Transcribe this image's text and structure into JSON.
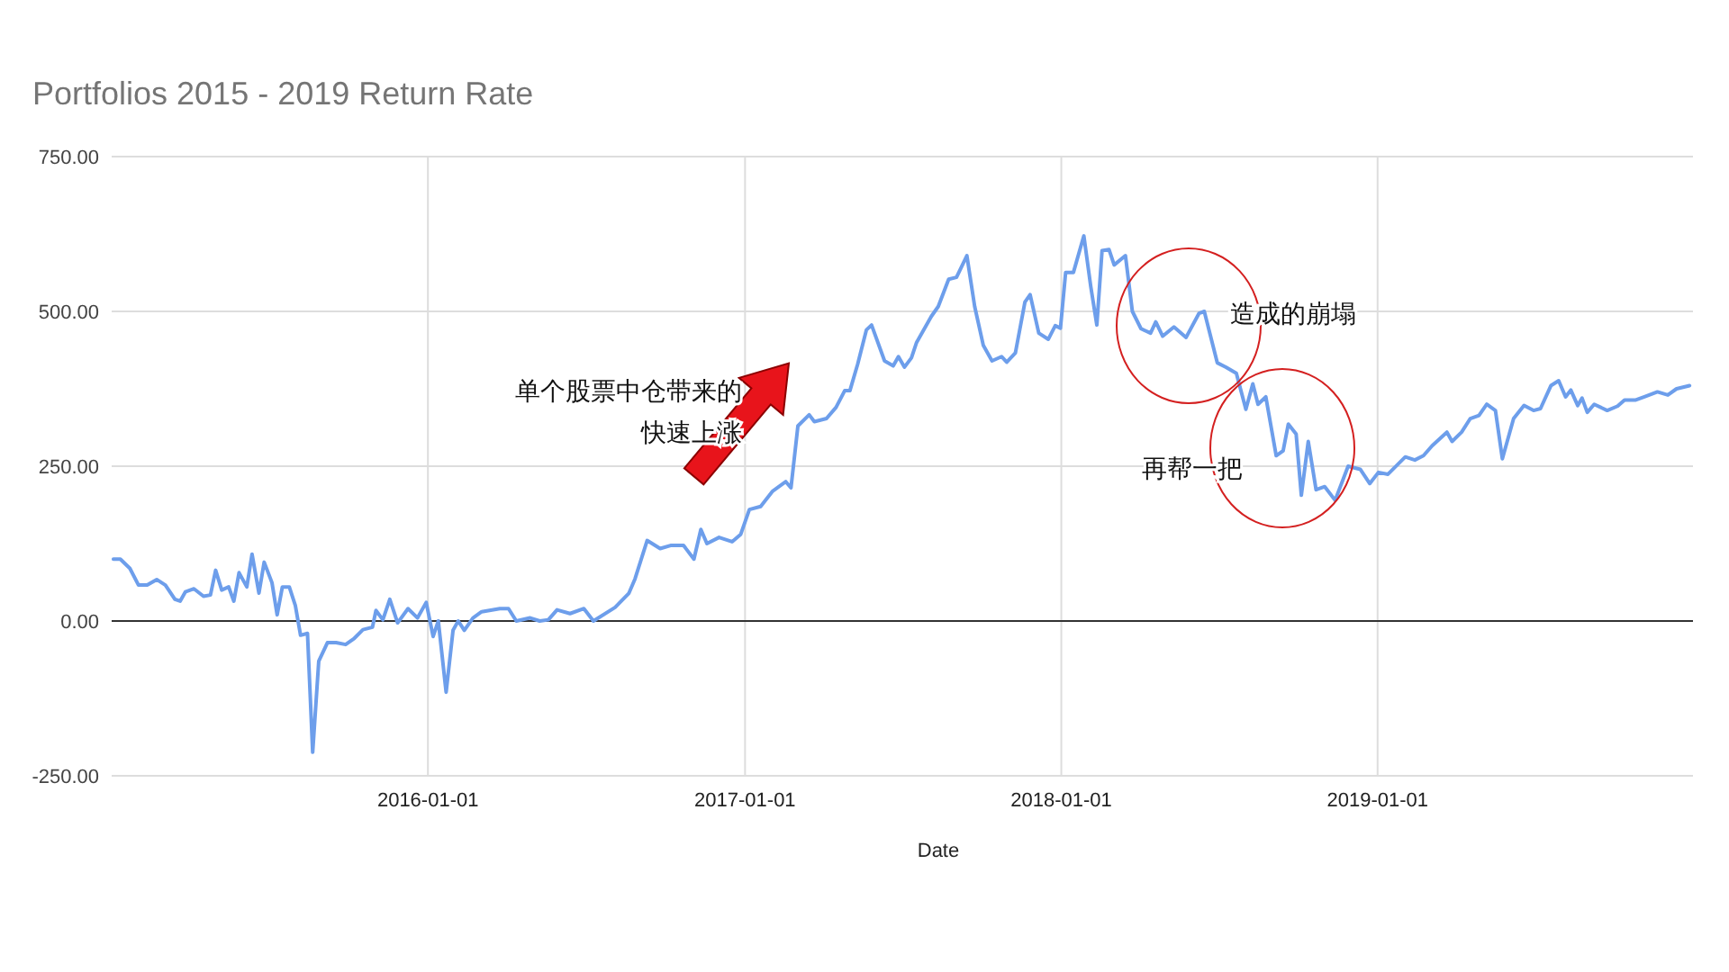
{
  "chart_data": {
    "type": "line",
    "title": "Portfolios 2015 - 2019 Return Rate",
    "xlabel": "Date",
    "xlim": [
      "2015-01-01",
      "2019-12-31"
    ],
    "xticks": [
      "2016-01-01",
      "2017-01-01",
      "2018-01-01",
      "2019-01-01"
    ],
    "ylim": [
      -250,
      750
    ],
    "yticks": [
      {
        "value": -250,
        "label": "-250.00"
      },
      {
        "value": 0,
        "label": "0.00"
      },
      {
        "value": 250,
        "label": "250.00"
      },
      {
        "value": 500,
        "label": "500.00"
      },
      {
        "value": 750,
        "label": "750.00"
      }
    ],
    "grid": true,
    "line_style": "solid",
    "marker": "none",
    "ref_lines": [
      {
        "axis": "y",
        "value": 0,
        "color": "#333333"
      }
    ],
    "annotations": [
      "单个股票中仓带来的",
      "快速上涨",
      "造成的崩塌",
      "再帮一把"
    ],
    "x": [
      "2015-01-03",
      "2015-01-11",
      "2015-01-22",
      "2015-02-01",
      "2015-02-11",
      "2015-02-22",
      "2015-03-04",
      "2015-03-15",
      "2015-03-21",
      "2015-03-27",
      "2015-04-06",
      "2015-04-17",
      "2015-04-25",
      "2015-05-01",
      "2015-05-08",
      "2015-05-16",
      "2015-05-22",
      "2015-05-28",
      "2015-06-06",
      "2015-06-12",
      "2015-06-20",
      "2015-06-26",
      "2015-07-05",
      "2015-07-11",
      "2015-07-17",
      "2015-07-25",
      "2015-08-01",
      "2015-08-07",
      "2015-08-15",
      "2015-08-21",
      "2015-08-28",
      "2015-09-07",
      "2015-09-17",
      "2015-09-28",
      "2015-10-08",
      "2015-10-18",
      "2015-10-29",
      "2015-11-02",
      "2015-11-10",
      "2015-11-18",
      "2015-11-27",
      "2015-12-09",
      "2015-12-20",
      "2015-12-30",
      "2016-01-07",
      "2016-01-13",
      "2016-01-22",
      "2016-01-30",
      "2016-02-05",
      "2016-02-12",
      "2016-02-22",
      "2016-03-03",
      "2016-03-24",
      "2016-04-03",
      "2016-04-12",
      "2016-04-28",
      "2016-05-09",
      "2016-05-19",
      "2016-05-29",
      "2016-06-13",
      "2016-06-29",
      "2016-07-10",
      "2016-08-04",
      "2016-08-20",
      "2016-08-27",
      "2016-09-10",
      "2016-09-25",
      "2016-10-07",
      "2016-10-22",
      "2016-11-03",
      "2016-11-11",
      "2016-11-18",
      "2016-12-02",
      "2016-12-17",
      "2016-12-27",
      "2017-01-06",
      "2017-01-19",
      "2017-02-02",
      "2017-02-17",
      "2017-02-23",
      "2017-03-03",
      "2017-03-16",
      "2017-03-22",
      "2017-04-05",
      "2017-04-16",
      "2017-04-26",
      "2017-05-02",
      "2017-05-11",
      "2017-05-21",
      "2017-05-27",
      "2017-06-11",
      "2017-06-21",
      "2017-06-27",
      "2017-07-04",
      "2017-07-12",
      "2017-07-18",
      "2017-08-04",
      "2017-08-12",
      "2017-08-24",
      "2017-09-02",
      "2017-09-14",
      "2017-09-23",
      "2017-10-03",
      "2017-10-13",
      "2017-10-24",
      "2017-10-30",
      "2017-11-09",
      "2017-11-20",
      "2017-11-26",
      "2017-12-06",
      "2017-12-17",
      "2017-12-25",
      "2017-12-31",
      "2018-01-06",
      "2018-01-15",
      "2018-01-27",
      "2018-02-04",
      "2018-02-11",
      "2018-02-17",
      "2018-02-25",
      "2018-03-03",
      "2018-03-16",
      "2018-03-24",
      "2018-04-03",
      "2018-04-14",
      "2018-04-20",
      "2018-04-28",
      "2018-05-11",
      "2018-05-25",
      "2018-06-09",
      "2018-06-15",
      "2018-06-30",
      "2018-07-10",
      "2018-07-22",
      "2018-08-02",
      "2018-08-10",
      "2018-08-16",
      "2018-08-25",
      "2018-09-06",
      "2018-09-14",
      "2018-09-20",
      "2018-09-29",
      "2018-10-05",
      "2018-10-13",
      "2018-10-22",
      "2018-11-01",
      "2018-11-13",
      "2018-11-28",
      "2018-12-12",
      "2018-12-23",
      "2019-01-02",
      "2019-01-13",
      "2019-02-02",
      "2019-02-13",
      "2019-02-23",
      "2019-03-05",
      "2019-03-22",
      "2019-03-28",
      "2019-04-08",
      "2019-04-18",
      "2019-04-28",
      "2019-05-07",
      "2019-05-17",
      "2019-05-25",
      "2019-06-07",
      "2019-06-19",
      "2019-06-30",
      "2019-07-08",
      "2019-07-20",
      "2019-07-29",
      "2019-08-06",
      "2019-08-12",
      "2019-08-20",
      "2019-08-25",
      "2019-08-31",
      "2019-09-08",
      "2019-09-23",
      "2019-10-05",
      "2019-10-13",
      "2019-10-26",
      "2019-11-05",
      "2019-11-20",
      "2019-12-02",
      "2019-12-12",
      "2019-12-27"
    ],
    "series": [
      {
        "color": "#6d9eeb",
        "values": [
          100,
          100,
          85,
          58,
          58,
          67,
          58,
          35,
          32,
          47,
          52,
          40,
          42,
          82,
          50,
          55,
          32,
          78,
          55,
          108,
          45,
          95,
          62,
          10,
          55,
          55,
          25,
          -23,
          -20,
          -212,
          -65,
          -35,
          -35,
          -38,
          -28,
          -14,
          -10,
          17,
          2,
          35,
          -3,
          20,
          5,
          30,
          -25,
          0,
          -115,
          -15,
          0,
          -15,
          5,
          15,
          20,
          20,
          0,
          5,
          0,
          2,
          18,
          12,
          20,
          0,
          22,
          45,
          68,
          130,
          117,
          122,
          122,
          100,
          148,
          125,
          135,
          128,
          140,
          180,
          185,
          210,
          225,
          215,
          315,
          333,
          322,
          327,
          345,
          372,
          372,
          415,
          470,
          478,
          420,
          412,
          427,
          410,
          425,
          450,
          492,
          508,
          552,
          555,
          590,
          508,
          445,
          420,
          427,
          418,
          433,
          515,
          527,
          465,
          455,
          477,
          473,
          563,
          563,
          622,
          540,
          478,
          598,
          600,
          575,
          590,
          500,
          472,
          465,
          483,
          460,
          475,
          458,
          497,
          500,
          417,
          410,
          400,
          342,
          383,
          350,
          362,
          267,
          275,
          318,
          302,
          203,
          290,
          212,
          217,
          195,
          250,
          245,
          222,
          240,
          237,
          265,
          260,
          267,
          283,
          305,
          290,
          305,
          327,
          332,
          350,
          340,
          262,
          327,
          348,
          340,
          343,
          380,
          388,
          362,
          373,
          348,
          360,
          337,
          350,
          340,
          347,
          357,
          357,
          362,
          370,
          365,
          375,
          380
        ]
      }
    ]
  }
}
